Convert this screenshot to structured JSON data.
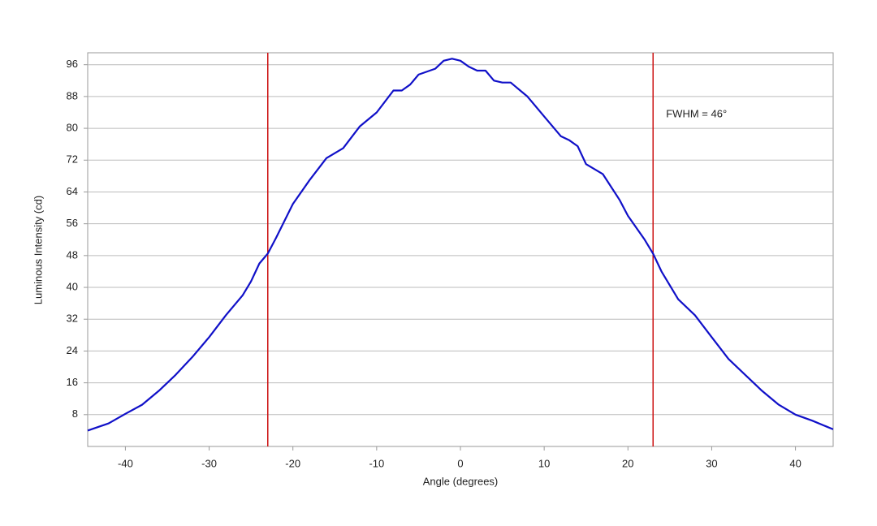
{
  "chart_data": {
    "type": "line",
    "x_label": "Angle (degrees)",
    "y_label": "Luminous Intensity (cd)",
    "annotation": "FWHM = 46°",
    "x": [
      -44.5,
      -42,
      -40,
      -38,
      -36,
      -34,
      -32,
      -30,
      -28,
      -26,
      -25,
      -24,
      -23,
      -22,
      -20,
      -18,
      -16,
      -14,
      -12,
      -10,
      -8,
      -7,
      -6,
      -5,
      -3,
      -2,
      -1,
      0,
      1,
      2,
      3,
      4,
      5,
      6,
      8,
      10,
      12,
      13,
      14,
      15,
      17,
      19,
      20,
      22,
      23,
      24,
      26,
      28,
      30,
      32,
      34,
      35,
      36,
      38,
      40,
      42,
      44.5
    ],
    "series": [
      {
        "name": "Intensity",
        "color": "#1010c8",
        "values": [
          4.0,
          5.8,
          8.2,
          10.5,
          14,
          18,
          22.5,
          27.5,
          33,
          38,
          41.5,
          46,
          48.5,
          52.5,
          61,
          67,
          72.5,
          75,
          80.5,
          84,
          89.5,
          89.5,
          91,
          93.5,
          95,
          97,
          97.5,
          97,
          95.5,
          94.5,
          94.5,
          92,
          91.5,
          91.5,
          88,
          83,
          78,
          77,
          75.5,
          71,
          68.5,
          62,
          58,
          52,
          48.5,
          44,
          37,
          33,
          27.5,
          22,
          18,
          16,
          14,
          10.5,
          8,
          6.5,
          4.3
        ]
      }
    ],
    "vlines": [
      -23,
      23
    ],
    "vline_color": "#cc1010",
    "xlim": [
      -44.5,
      44.5
    ],
    "ylim": [
      0,
      99
    ],
    "xticks": [
      -40,
      -30,
      -20,
      -10,
      0,
      10,
      20,
      30,
      40
    ],
    "yticks": [
      8,
      16,
      24,
      32,
      40,
      48,
      56,
      64,
      72,
      80,
      88,
      96
    ],
    "grid": true
  }
}
